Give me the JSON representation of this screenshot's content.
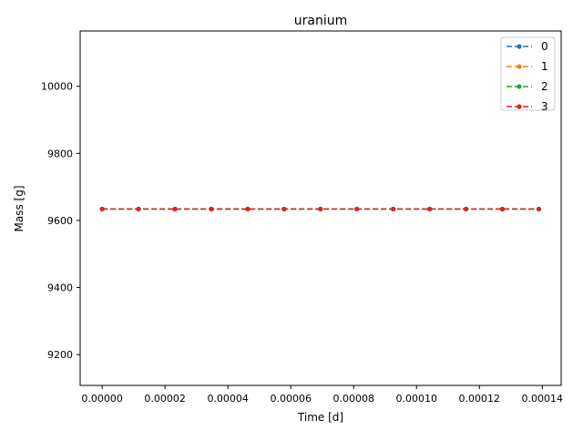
{
  "chart_data": {
    "type": "line",
    "title": "uranium",
    "xlabel": "Time [d]",
    "ylabel": "Mass [g]",
    "xlim": [
      -7e-06,
      0.000146
    ],
    "ylim": [
      9108,
      10165
    ],
    "xticks": [
      0.0,
      2e-05,
      4e-05,
      6e-05,
      8e-05,
      0.0001,
      0.00012,
      0.00014
    ],
    "xtick_labels": [
      "0.00000",
      "0.00002",
      "0.00004",
      "0.00006",
      "0.00008",
      "0.00010",
      "0.00012",
      "0.00014"
    ],
    "yticks": [
      9200,
      9400,
      9600,
      9800,
      10000
    ],
    "ytick_labels": [
      "9200",
      "9400",
      "9600",
      "9800",
      "10000"
    ],
    "grid": false,
    "legend_position": "top-right",
    "x": [
      0.0,
      1.157e-05,
      2.315e-05,
      3.472e-05,
      4.63e-05,
      5.787e-05,
      6.944e-05,
      8.102e-05,
      9.259e-05,
      0.00010417,
      0.00011574,
      0.00012731,
      0.00013889
    ],
    "series": [
      {
        "name": "0",
        "color": "#1f77b4",
        "values": [
          9634,
          9634,
          9634,
          9634,
          9634,
          9634,
          9634,
          9634,
          9634,
          9634,
          9634,
          9634,
          9634
        ]
      },
      {
        "name": "1",
        "color": "#ff7f0e",
        "values": [
          9634,
          9634,
          9634,
          9634,
          9634,
          9634,
          9634,
          9634,
          9634,
          9634,
          9634,
          9634,
          9634
        ]
      },
      {
        "name": "2",
        "color": "#2ca02c",
        "values": [
          9634,
          9634,
          9634,
          9634,
          9634,
          9634,
          9634,
          9634,
          9634,
          9634,
          9634,
          9634,
          9634
        ]
      },
      {
        "name": "3",
        "color": "#d62728",
        "values": [
          9634,
          9634,
          9634,
          9634,
          9634,
          9634,
          9634,
          9634,
          9634,
          9634,
          9634,
          9634,
          9634
        ]
      }
    ]
  }
}
